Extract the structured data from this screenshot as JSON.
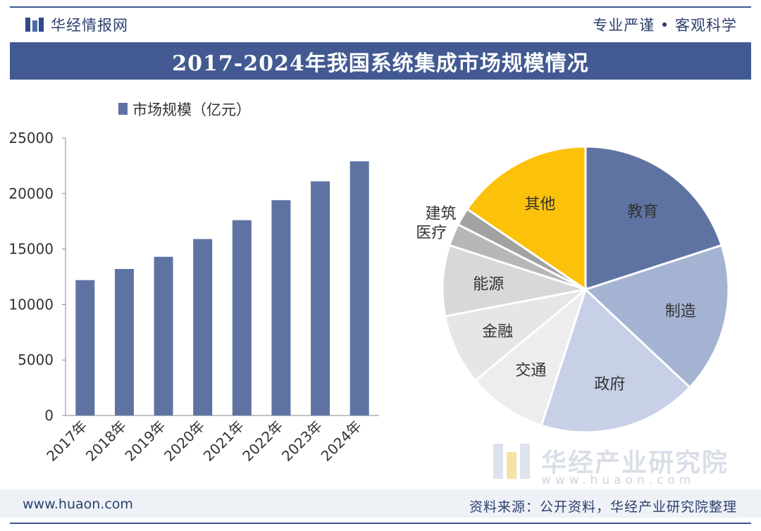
{
  "header": {
    "brand_name": "华经情报网",
    "slogan": "专业严谨 • 客观科学",
    "title": "2017-2024年我国系统集成市场规模情况"
  },
  "footer": {
    "website": "www.huaon.com",
    "source": "资料来源：公开资料，华经产业研究院整理"
  },
  "watermark": {
    "name": "华经产业研究院",
    "url": "www.huaon.com"
  },
  "colors": {
    "bar": "#5f73a3",
    "pie": [
      "#5f73a3",
      "#a5b3d3",
      "#c7d0e7",
      "#ededed",
      "#e6e6e6",
      "#d8d8d8",
      "#b7b7b7",
      "#a2a2a2",
      "#fcc10a"
    ]
  },
  "chart_data": [
    {
      "type": "bar",
      "legend": "市场规模（亿元）",
      "categories": [
        "2017年",
        "2018年",
        "2019年",
        "2020年",
        "2021年",
        "2022年",
        "2023年",
        "2024年"
      ],
      "series": [
        {
          "name": "市场规模（亿元）",
          "values": [
            12200,
            13200,
            14300,
            15900,
            17600,
            19400,
            21100,
            22900
          ]
        }
      ],
      "ylim": [
        0,
        25000
      ],
      "yticks": [
        "0",
        "5000",
        "10000",
        "15000",
        "20000",
        "25000"
      ],
      "grid": false,
      "legend_position": "top-left"
    },
    {
      "type": "pie",
      "labels": [
        "教育",
        "制造",
        "政府",
        "交通",
        "金融",
        "能源",
        "医疗",
        "建筑",
        "其他"
      ],
      "values": [
        20,
        17,
        18,
        9,
        8,
        8,
        2.5,
        2,
        15.5
      ]
    }
  ]
}
